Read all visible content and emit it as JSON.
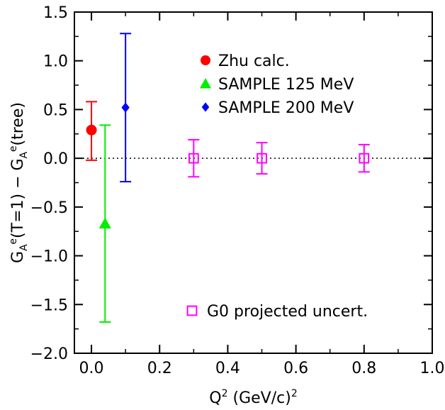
{
  "chart_data": {
    "type": "scatter",
    "title": "",
    "xlabel": "Q² (GeV/c)²",
    "ylabel": "Gₐᵉ(T=1) − Gₐᵉ(tree)",
    "xlim": [
      -0.05,
      1.0
    ],
    "ylim": [
      -2.0,
      1.5
    ],
    "xticks": [
      0.0,
      0.2,
      0.4,
      0.6,
      0.8,
      1.0
    ],
    "xtick_labels": [
      "0.0",
      "0.2",
      "0.4",
      "0.6",
      "0.8",
      "1.0"
    ],
    "yticks": [
      -2.0,
      -1.5,
      -1.0,
      -0.5,
      0.0,
      0.5,
      1.0,
      1.5
    ],
    "ytick_labels": [
      "−2.0",
      "−1.5",
      "−1.0",
      "−0.5",
      "0.0",
      "0.5",
      "1.0",
      "1.5"
    ],
    "reference_line": {
      "y": 0.0,
      "style": "dotted"
    },
    "grid": false,
    "legend_position": "top-right",
    "series": [
      {
        "name": "Zhu calc.",
        "marker": "circle",
        "color": "#ff0000",
        "points": [
          {
            "x": 0.0,
            "y": 0.29,
            "err_lo": 0.31,
            "err_hi": 0.29
          }
        ]
      },
      {
        "name": "SAMPLE 125 MeV",
        "marker": "triangle",
        "color": "#00ee00",
        "points": [
          {
            "x": 0.04,
            "y": -0.67,
            "err_lo": 1.01,
            "err_hi": 1.01
          }
        ]
      },
      {
        "name": "SAMPLE 200 MeV",
        "marker": "diamond",
        "color": "#0000ff",
        "points": [
          {
            "x": 0.1,
            "y": 0.52,
            "err_lo": 0.76,
            "err_hi": 0.76
          }
        ]
      },
      {
        "name": "G0 projected uncert.",
        "marker": "open-square",
        "color": "#ff00ff",
        "points": [
          {
            "x": 0.3,
            "y": 0.0,
            "err_lo": 0.19,
            "err_hi": 0.19
          },
          {
            "x": 0.5,
            "y": 0.0,
            "err_lo": 0.16,
            "err_hi": 0.16
          },
          {
            "x": 0.8,
            "y": 0.0,
            "err_lo": 0.14,
            "err_hi": 0.14
          }
        ]
      }
    ]
  }
}
